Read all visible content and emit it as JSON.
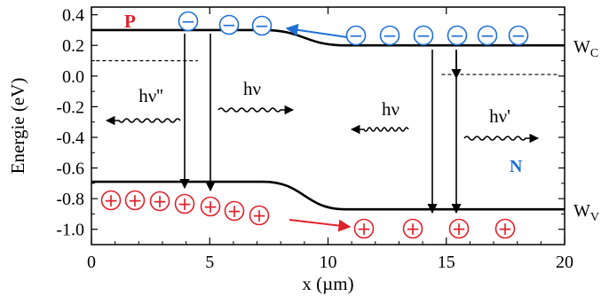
{
  "axes": {
    "xlabel": "x (µm)",
    "ylabel": "Energie (eV)",
    "x_ticks": [
      "0",
      "5",
      "10",
      "15",
      "20"
    ],
    "y_ticks": [
      "0.4",
      "0.2",
      "0.0",
      "-0.2",
      "-0.4",
      "-0.6",
      "-0.8",
      "-1.0"
    ],
    "xlim": [
      0,
      20
    ],
    "ylim": [
      -1.1,
      0.45
    ]
  },
  "bands": {
    "conduction_label": "W",
    "conduction_sub": "C",
    "valence_label": "W",
    "valence_sub": "V",
    "conduction_left_eV": 0.3,
    "conduction_right_eV": 0.2,
    "valence_left_eV": -0.69,
    "valence_right_eV": -0.87,
    "transition_um": [
      8,
      10
    ]
  },
  "regions": {
    "p_label": "P",
    "n_label": "N"
  },
  "fermi_levels": {
    "left_eV": 0.1,
    "right_eV": 0.01
  },
  "charges": {
    "electron_symbol": "−",
    "hole_symbol": "+"
  },
  "emissions": [
    {
      "label": "hν''",
      "direction": "left"
    },
    {
      "label": "hν",
      "direction": "right"
    },
    {
      "label": "hν",
      "direction": "left"
    },
    {
      "label": "hν'",
      "direction": "right"
    }
  ],
  "colors": {
    "electron": "#1e6fd6",
    "hole": "#e0202a",
    "p_label": "#e0202a",
    "n_label": "#1e6fd6",
    "line": "#000000"
  }
}
